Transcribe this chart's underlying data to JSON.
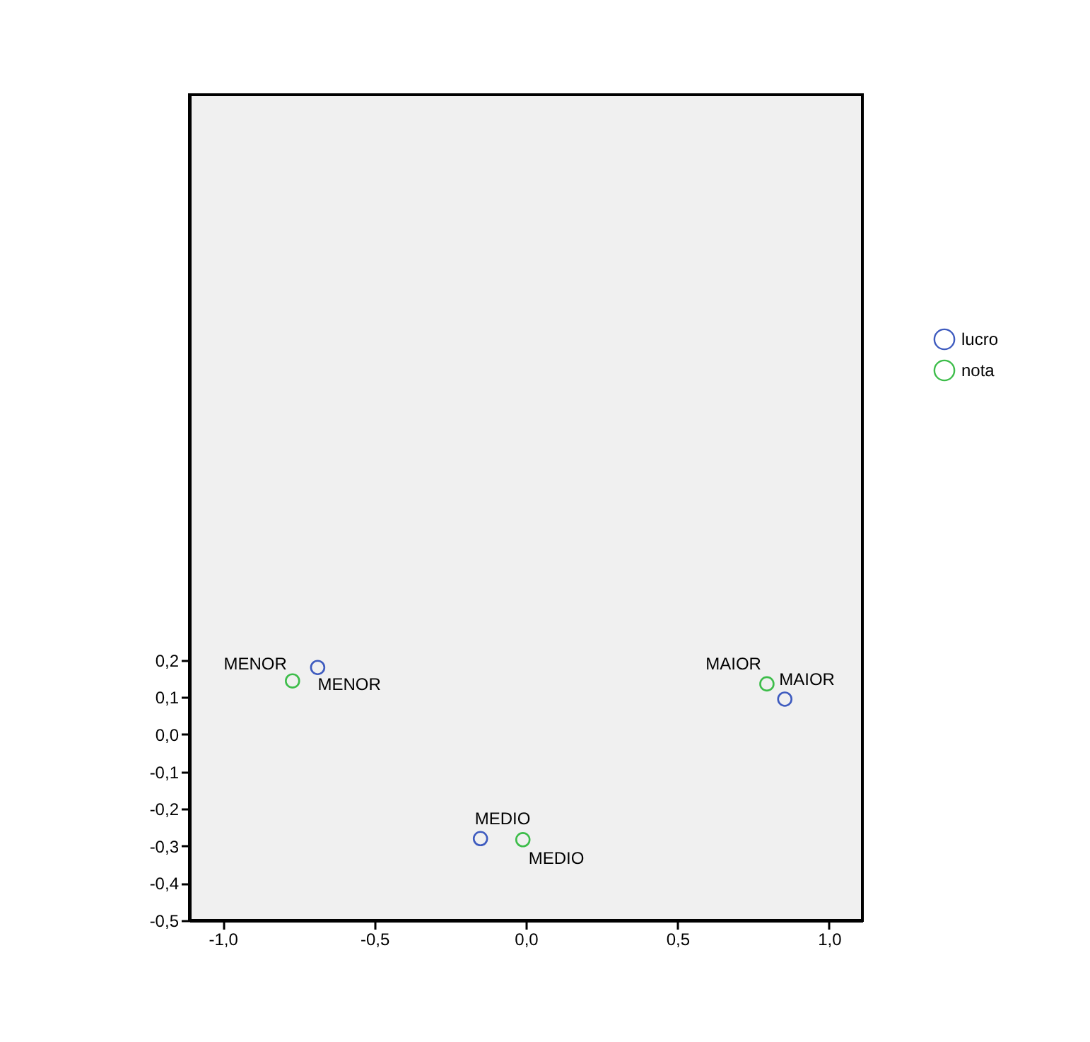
{
  "chart_data": {
    "type": "scatter",
    "xlim": [
      -1.11,
      1.11
    ],
    "xticks": [
      {
        "value": -1.0,
        "label": "-1,0"
      },
      {
        "value": -0.5,
        "label": "-0,5"
      },
      {
        "value": 0.0,
        "label": "0,0"
      },
      {
        "value": 0.5,
        "label": "0,5"
      },
      {
        "value": 1.0,
        "label": "1,0"
      }
    ],
    "ylim": [
      -0.5,
      1.72
    ],
    "yticks": [
      {
        "value": -0.5,
        "label": "-0,5"
      },
      {
        "value": -0.4,
        "label": "-0,4"
      },
      {
        "value": -0.3,
        "label": "-0,3"
      },
      {
        "value": -0.2,
        "label": "-0,2"
      },
      {
        "value": -0.1,
        "label": "-0,1"
      },
      {
        "value": 0.0,
        "label": "0,0"
      },
      {
        "value": 0.1,
        "label": "0,1"
      },
      {
        "value": 0.2,
        "label": "0,2"
      }
    ],
    "series": [
      {
        "name": "lucro",
        "color": "#3e5bbf",
        "x": [
          0.854,
          -0.15,
          -0.687
        ],
        "values": [
          0.095,
          -0.28,
          0.18
        ]
      },
      {
        "name": "nota",
        "color": "#3dbd4a",
        "x": [
          0.795,
          -0.01,
          -0.77
        ],
        "values": [
          0.136,
          -0.283,
          0.144
        ]
      }
    ],
    "annotations": [
      {
        "text": "MAIOR",
        "x": 0.854,
        "y": 0.095
      },
      {
        "text": "MEDIO",
        "x": -0.15,
        "y": -0.28
      },
      {
        "text": "MENOR",
        "x": -0.687,
        "y": 0.18
      },
      {
        "text": "MAIOR",
        "x": 0.795,
        "y": 0.136
      },
      {
        "text": "MEDIO",
        "x": -0.01,
        "y": -0.283
      },
      {
        "text": "MENOR",
        "x": -0.77,
        "y": 0.144
      }
    ],
    "marker": "circle",
    "grid": false,
    "legend": "right"
  }
}
